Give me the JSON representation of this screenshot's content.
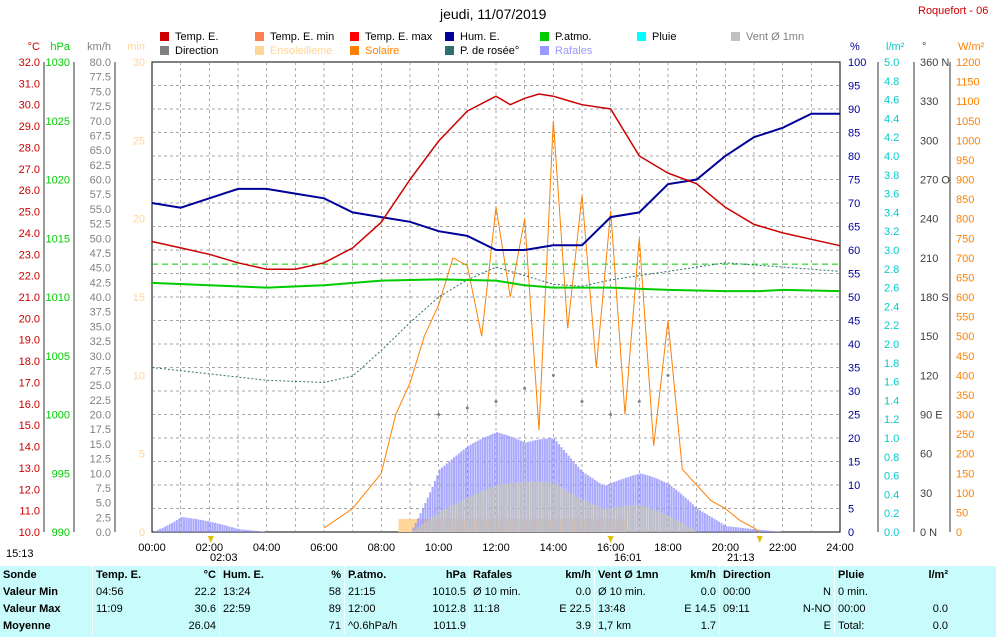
{
  "title": "jeudi, 11/07/2019",
  "station": "Roquefort - 06",
  "legend": [
    {
      "label": "Temp. E.",
      "color": "#cc0000"
    },
    {
      "label": "Temp. E. min",
      "color": "#ff7f50"
    },
    {
      "label": "Temp. E. max",
      "color": "#ff0000"
    },
    {
      "label": "Hum. E.",
      "color": "#000099"
    },
    {
      "label": "P.atmo.",
      "color": "#00cc00"
    },
    {
      "label": "Pluie",
      "color": "#00ffff"
    },
    {
      "label": "Vent Ø 1mn",
      "color": "#c0c0c0"
    },
    {
      "label": "Direction",
      "color": "#808080"
    },
    {
      "label": "Ensoleilleme",
      "color": "#ffd59a"
    },
    {
      "label": "Solaire",
      "color": "#ff8000"
    },
    {
      "label": "P. de rosée°",
      "color": "#2f6f6f"
    },
    {
      "label": "Rafales",
      "color": "#9999ff"
    }
  ],
  "axis_units": {
    "temp": "°C",
    "press": "hPa",
    "wind": "km/h",
    "sun": "min",
    "hum": "%",
    "rain": "l/m²",
    "dir": "°",
    "solar": "W/m²"
  },
  "axis_labels": {
    "temp": [
      "32.0",
      "31.0",
      "30.0",
      "29.0",
      "28.0",
      "27.0",
      "26.0",
      "25.0",
      "24.0",
      "23.0",
      "22.0",
      "21.0",
      "20.0",
      "19.0",
      "18.0",
      "17.0",
      "16.0",
      "15.0",
      "14.0",
      "13.0",
      "12.0",
      "11.0",
      "10.0"
    ],
    "press": [
      "1030",
      "1025",
      "1020",
      "1015",
      "1010",
      "1005",
      "1000",
      "995",
      "990"
    ],
    "wind": [
      "80.0",
      "77.5",
      "75.0",
      "72.5",
      "70.0",
      "67.5",
      "65.0",
      "62.5",
      "60.0",
      "57.5",
      "55.0",
      "52.5",
      "50.0",
      "47.5",
      "45.0",
      "42.5",
      "40.0",
      "37.5",
      "35.0",
      "32.5",
      "30.0",
      "27.5",
      "25.0",
      "22.5",
      "20.0",
      "17.5",
      "15.0",
      "12.5",
      "10.0",
      "7.5",
      "5.0",
      "2.5",
      "0.0"
    ],
    "sun": [
      "30",
      "25",
      "20",
      "15",
      "10",
      "5",
      "0"
    ],
    "hum": [
      "100",
      "95",
      "90",
      "85",
      "80",
      "75",
      "70",
      "65",
      "60",
      "55",
      "50",
      "45",
      "40",
      "35",
      "30",
      "25",
      "20",
      "15",
      "10",
      "5",
      "0"
    ],
    "rain": [
      "5.0",
      "4.8",
      "4.6",
      "4.4",
      "4.2",
      "4.0",
      "3.8",
      "3.6",
      "3.4",
      "3.2",
      "3.0",
      "2.8",
      "2.6",
      "2.4",
      "2.2",
      "2.0",
      "1.8",
      "1.6",
      "1.4",
      "1.2",
      "1.0",
      "0.8",
      "0.6",
      "0.4",
      "0.2",
      "0.0"
    ],
    "dir": [
      "360 N",
      "330",
      "300",
      "270 O",
      "240",
      "210",
      "180 S",
      "150",
      "120",
      "90 E",
      "60",
      "30",
      "0 N"
    ],
    "solar": [
      "1200",
      "1150",
      "1100",
      "1050",
      "1000",
      "950",
      "900",
      "850",
      "800",
      "750",
      "700",
      "650",
      "600",
      "550",
      "500",
      "450",
      "400",
      "350",
      "300",
      "250",
      "200",
      "150",
      "100",
      "50",
      "0"
    ]
  },
  "x_ticks": [
    "00:00",
    "02:00",
    "04:00",
    "06:00",
    "08:00",
    "10:00",
    "12:00",
    "14:00",
    "16:00",
    "18:00",
    "20:00",
    "22:00",
    "24:00"
  ],
  "markers": {
    "left_time": "15:13",
    "sunrise": "02:03",
    "solar_peak": "16:01",
    "sunset": "21:13"
  },
  "chart_data": {
    "type": "line",
    "x_unit": "hour",
    "xlim": [
      0,
      24
    ],
    "temp_ylim": [
      10,
      32
    ],
    "series": [
      {
        "name": "Temp. E.",
        "axis": "temp",
        "color": "#cc0000",
        "x": [
          0,
          1,
          2,
          3,
          4,
          5,
          6,
          7,
          8,
          9,
          10,
          11,
          12,
          12.5,
          13,
          13.5,
          14,
          14.5,
          15,
          16,
          17,
          18,
          19,
          20,
          21,
          22,
          23,
          24
        ],
        "y": [
          23.6,
          23.3,
          23.0,
          22.6,
          22.3,
          22.3,
          22.6,
          23.3,
          24.5,
          26.5,
          28.3,
          29.7,
          30.4,
          30.0,
          30.3,
          30.5,
          30.4,
          30.2,
          30.0,
          29.8,
          27.6,
          26.8,
          26.3,
          25.2,
          24.4,
          24.0,
          23.7,
          23.4
        ]
      },
      {
        "name": "Hum. E.",
        "axis": "hum",
        "color": "#000099",
        "x": [
          0,
          1,
          2,
          3,
          4,
          5,
          6,
          7,
          8,
          9,
          10,
          11,
          12,
          13,
          14,
          15,
          16,
          17,
          18,
          19,
          20,
          21,
          22,
          23,
          24
        ],
        "y": [
          70,
          69,
          71,
          73,
          73,
          72,
          71,
          68,
          67,
          66,
          64,
          63,
          60,
          60,
          61,
          61,
          67,
          68,
          74,
          75,
          80,
          84,
          86,
          89,
          89
        ]
      },
      {
        "name": "P.atmo.",
        "axis": "press",
        "color": "#00cc00",
        "x": [
          0,
          2,
          4,
          6,
          8,
          10,
          12,
          13,
          14,
          16,
          18,
          20,
          21.25,
          22,
          24
        ],
        "y": [
          1011.2,
          1011.0,
          1010.8,
          1011.0,
          1011.4,
          1011.5,
          1011.4,
          1011.0,
          1010.8,
          1010.8,
          1010.6,
          1010.5,
          1010.5,
          1010.6,
          1010.5
        ]
      },
      {
        "name": "P. de rosée°",
        "axis": "temp",
        "color": "#2f6f6f",
        "x": [
          0,
          2,
          4,
          6,
          7,
          8,
          9,
          10,
          11,
          12,
          13,
          14,
          15,
          16,
          17,
          18,
          19,
          20,
          21,
          22,
          23,
          24
        ],
        "y": [
          17.7,
          17.4,
          17.1,
          17.0,
          17.3,
          18.5,
          19.8,
          21.0,
          21.8,
          22.4,
          22.0,
          21.6,
          21.5,
          21.8,
          22.0,
          22.2,
          22.4,
          22.6,
          22.5,
          22.4,
          22.3,
          22.2
        ]
      },
      {
        "name": "Solaire",
        "axis": "solar",
        "color": "#ff8000",
        "x": [
          6,
          7,
          8,
          8.5,
          9,
          9.5,
          10,
          10.5,
          11,
          11.5,
          12,
          12.5,
          13,
          13.5,
          14,
          14.5,
          15,
          15.5,
          16,
          16.5,
          17,
          17.5,
          18,
          18.5,
          19,
          19.5,
          20,
          20.5,
          21,
          21.2
        ],
        "y": [
          10,
          60,
          150,
          300,
          380,
          500,
          580,
          700,
          680,
          500,
          830,
          600,
          800,
          260,
          1050,
          520,
          860,
          420,
          820,
          300,
          750,
          220,
          540,
          160,
          120,
          80,
          60,
          30,
          10,
          0
        ]
      },
      {
        "name": "Rafales",
        "axis": "wind",
        "color": "#9999ff",
        "x": [
          0,
          1,
          2,
          3,
          4,
          5,
          6,
          7,
          8,
          9,
          10,
          11,
          12,
          13,
          14,
          15,
          16,
          17,
          18,
          19,
          20,
          21,
          22,
          24
        ],
        "y": [
          0,
          3.5,
          2.0,
          0.5,
          0,
          0,
          0,
          0,
          0,
          0,
          12,
          15,
          17,
          16,
          19,
          15,
          14,
          13,
          9,
          4,
          1,
          0.5,
          0,
          0
        ]
      },
      {
        "name": "Vent Ø 1mn",
        "axis": "wind",
        "color": "#c0c0c0",
        "x": [
          0,
          8,
          9,
          10,
          11,
          12,
          13,
          14,
          15,
          16,
          17,
          18,
          19,
          20,
          24
        ],
        "y": [
          0,
          0,
          0,
          4,
          6,
          8,
          9,
          10,
          8,
          7,
          6,
          3,
          0,
          0,
          0
        ]
      },
      {
        "name": "Direction",
        "axis": "dir",
        "color": "#808080",
        "x": [
          10,
          11,
          12,
          13,
          14,
          15,
          16,
          17,
          18
        ],
        "y": [
          90,
          95,
          100,
          110,
          120,
          100,
          90,
          100,
          120
        ]
      }
    ]
  },
  "stats": {
    "headers": [
      [
        "Sonde",
        ""
      ],
      [
        "Temp. E.",
        "°C"
      ],
      [
        "Hum. E.",
        "%"
      ],
      [
        "P.atmo.",
        "hPa"
      ],
      [
        "Rafales",
        "km/h"
      ],
      [
        "Vent Ø 1mn",
        "km/h"
      ],
      [
        "Direction",
        ""
      ],
      [
        "Pluie",
        "l/m²"
      ]
    ],
    "rows": [
      [
        "Valeur Min",
        "04:56",
        "22.2",
        "13:24",
        "58",
        "21:15",
        "1010.5",
        "Ø 10 min.",
        "0.0",
        "Ø 10 min.",
        "0.0",
        "00:00",
        "N",
        "0 min.",
        ""
      ],
      [
        "Valeur Max",
        "11:09",
        "30.6",
        "22:59",
        "89",
        "12:00",
        "1012.8",
        "11:18",
        "E 22.5",
        "13:48",
        "E 14.5",
        "09:11",
        "N-NO",
        "00:00",
        "0.0"
      ],
      [
        "Moyenne",
        "",
        "26.04",
        "",
        "71",
        "^0.6hPa/h",
        "1011.9",
        "",
        "3.9",
        "1,7 km",
        "1.7",
        "",
        "E",
        "Total:",
        "0.0"
      ]
    ]
  }
}
